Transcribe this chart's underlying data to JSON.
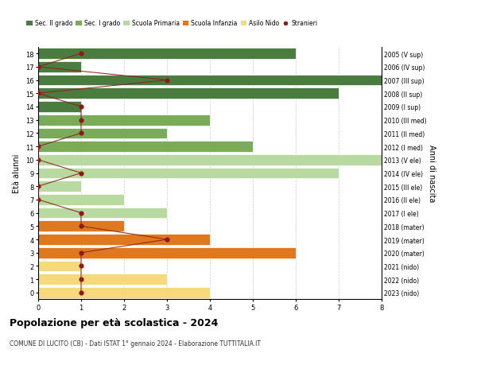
{
  "ages": [
    18,
    17,
    16,
    15,
    14,
    13,
    12,
    11,
    10,
    9,
    8,
    7,
    6,
    5,
    4,
    3,
    2,
    1,
    0
  ],
  "right_labels": [
    "2005 (V sup)",
    "2006 (IV sup)",
    "2007 (III sup)",
    "2008 (II sup)",
    "2009 (I sup)",
    "2010 (III med)",
    "2011 (II med)",
    "2012 (I med)",
    "2013 (V ele)",
    "2014 (IV ele)",
    "2015 (III ele)",
    "2016 (II ele)",
    "2017 (I ele)",
    "2018 (mater)",
    "2019 (mater)",
    "2020 (mater)",
    "2021 (nido)",
    "2022 (nido)",
    "2023 (nido)"
  ],
  "bar_values": [
    6,
    1,
    8,
    7,
    1,
    4,
    3,
    5,
    8,
    7,
    1,
    2,
    3,
    2,
    4,
    6,
    1,
    3,
    4
  ],
  "bar_colors": [
    "#4a7c40",
    "#4a7c40",
    "#4a7c40",
    "#4a7c40",
    "#4a7c40",
    "#7aab5a",
    "#7aab5a",
    "#7aab5a",
    "#b8d9a0",
    "#b8d9a0",
    "#b8d9a0",
    "#b8d9a0",
    "#b8d9a0",
    "#e07820",
    "#e07820",
    "#e07820",
    "#f5d97a",
    "#f5d97a",
    "#f5d97a"
  ],
  "stranieri_values": [
    1,
    0,
    3,
    0,
    1,
    1,
    1,
    0,
    0,
    1,
    0,
    0,
    1,
    1,
    3,
    1,
    1,
    1,
    1
  ],
  "xlim": [
    0,
    8
  ],
  "ylim": [
    -0.5,
    18.5
  ],
  "title": "Popolazione per età scolastica - 2024",
  "subtitle": "COMUNE DI LUCITO (CB) - Dati ISTAT 1° gennaio 2024 - Elaborazione TUTTITALIA.IT",
  "ylabel": "Età alunni",
  "right_ylabel": "Anni di nascita",
  "legend_labels": [
    "Sec. II grado",
    "Sec. I grado",
    "Scuola Primaria",
    "Scuola Infanzia",
    "Asilo Nido",
    "Stranieri"
  ],
  "legend_colors": [
    "#4a7c40",
    "#7aab5a",
    "#b8d9a0",
    "#e07820",
    "#f5d97a",
    "#8b1a1a"
  ],
  "bg_color": "#ffffff",
  "grid_color": "#cccccc",
  "bar_height": 0.82,
  "stranieri_color": "#8b1a1a",
  "stranieri_line_color": "#8b2020"
}
